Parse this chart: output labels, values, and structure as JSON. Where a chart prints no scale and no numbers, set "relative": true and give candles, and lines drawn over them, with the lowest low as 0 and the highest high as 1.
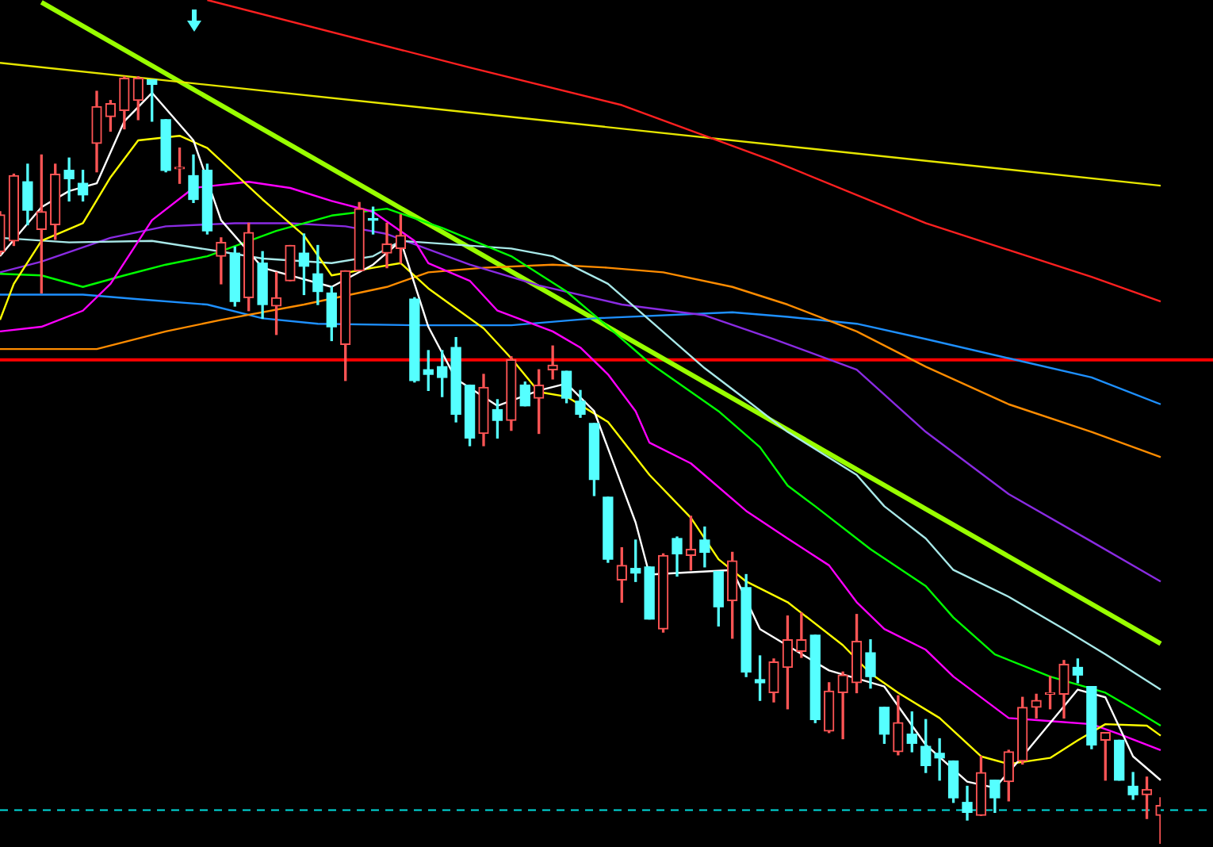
{
  "chart_data": {
    "type": "candlestick",
    "relative": true,
    "marker": "none",
    "categories": [
      null,
      null,
      null,
      null,
      null,
      null,
      null,
      null,
      null,
      null,
      null,
      null,
      null,
      null,
      null,
      null,
      null,
      null,
      null,
      null,
      null,
      null,
      null,
      null,
      null,
      null,
      null,
      null,
      null,
      null,
      null,
      null,
      null,
      null,
      null,
      null,
      null,
      null,
      null,
      null,
      null,
      null,
      null,
      null,
      null,
      null,
      null,
      null,
      null,
      null,
      null,
      null,
      null,
      null,
      null,
      null,
      null,
      null,
      null,
      null,
      null,
      null,
      null,
      null,
      null,
      null,
      null,
      null,
      null,
      null,
      null,
      null,
      null,
      null,
      null,
      null,
      null,
      null,
      null,
      null,
      null,
      null,
      null,
      null,
      null
    ],
    "ohlc": [
      [
        0.772,
        0.824,
        0.768,
        0.82
      ],
      [
        0.786,
        0.873,
        0.78,
        0.871
      ],
      [
        0.863,
        0.886,
        0.807,
        0.826
      ],
      [
        0.801,
        0.898,
        0.718,
        0.824
      ],
      [
        0.807,
        0.886,
        0.788,
        0.873
      ],
      [
        0.878,
        0.894,
        0.838,
        0.867
      ],
      [
        0.861,
        0.878,
        0.838,
        0.846
      ],
      [
        0.913,
        0.981,
        0.876,
        0.961
      ],
      [
        0.948,
        0.969,
        0.929,
        0.965
      ],
      [
        0.956,
        1,
        0.932,
        0.998
      ],
      [
        0.969,
        1,
        0.944,
        0.998
      ],
      [
        0.996,
        0.996,
        0.942,
        0.99
      ],
      [
        0.944,
        0.944,
        0.876,
        0.878
      ],
      [
        0.88,
        0.907,
        0.861,
        0.882
      ],
      [
        0.871,
        0.898,
        0.836,
        0.84
      ],
      [
        0.878,
        0.886,
        0.795,
        0.799
      ],
      [
        0.766,
        0.79,
        0.73,
        0.784
      ],
      [
        0.77,
        0.778,
        0.701,
        0.707
      ],
      [
        0.712,
        0.809,
        0.695,
        0.797
      ],
      [
        0.757,
        0.772,
        0.685,
        0.703
      ],
      [
        0.701,
        0.745,
        0.664,
        0.712
      ],
      [
        0.734,
        0.78,
        0.734,
        0.78
      ],
      [
        0.77,
        0.795,
        0.716,
        0.753
      ],
      [
        0.743,
        0.78,
        0.703,
        0.72
      ],
      [
        0.718,
        0.726,
        0.656,
        0.674
      ],
      [
        0.651,
        0.747,
        0.604,
        0.747
      ],
      [
        0.747,
        0.836,
        0.747,
        0.828
      ],
      [
        0.815,
        0.83,
        0.795,
        0.813
      ],
      [
        0.77,
        0.809,
        0.751,
        0.782
      ],
      [
        0.776,
        0.82,
        0.757,
        0.793
      ],
      [
        0.71,
        0.712,
        0.602,
        0.604
      ],
      [
        0.618,
        0.643,
        0.591,
        0.612
      ],
      [
        0.622,
        0.643,
        0.583,
        0.608
      ],
      [
        0.647,
        0.66,
        0.55,
        0.56
      ],
      [
        0.598,
        0.598,
        0.519,
        0.529
      ],
      [
        0.535,
        0.612,
        0.519,
        0.595
      ],
      [
        0.566,
        0.579,
        0.529,
        0.552
      ],
      [
        0.552,
        0.635,
        0.539,
        0.631
      ],
      [
        0.598,
        0.602,
        0.571,
        0.571
      ],
      [
        0.581,
        0.618,
        0.535,
        0.598
      ],
      [
        0.618,
        0.649,
        0.606,
        0.624
      ],
      [
        0.616,
        0.616,
        0.575,
        0.581
      ],
      [
        0.577,
        0.591,
        0.556,
        0.56
      ],
      [
        0.548,
        0.548,
        0.454,
        0.475
      ],
      [
        0.452,
        0.452,
        0.367,
        0.371
      ],
      [
        0.344,
        0.386,
        0.315,
        0.363
      ],
      [
        0.359,
        0.396,
        0.342,
        0.353
      ],
      [
        0.361,
        0.361,
        0.293,
        0.293
      ],
      [
        0.28,
        0.378,
        0.276,
        0.376
      ],
      [
        0.398,
        0.4,
        0.349,
        0.378
      ],
      [
        0.376,
        0.427,
        0.357,
        0.384
      ],
      [
        0.396,
        0.413,
        0.361,
        0.38
      ],
      [
        0.355,
        0.355,
        0.284,
        0.309
      ],
      [
        0.317,
        0.38,
        0.268,
        0.369
      ],
      [
        0.334,
        0.351,
        0.218,
        0.224
      ],
      [
        0.214,
        0.245,
        0.187,
        0.21
      ],
      [
        0.197,
        0.241,
        0.185,
        0.237
      ],
      [
        0.23,
        0.297,
        0.176,
        0.266
      ],
      [
        0.251,
        0.301,
        0.243,
        0.266
      ],
      [
        0.272,
        0.272,
        0.158,
        0.162
      ],
      [
        0.147,
        0.21,
        0.145,
        0.199
      ],
      [
        0.197,
        0.224,
        0.137,
        0.22
      ],
      [
        0.21,
        0.299,
        0.197,
        0.264
      ],
      [
        0.249,
        0.266,
        0.203,
        0.218
      ],
      [
        0.178,
        0.178,
        0.131,
        0.143
      ],
      [
        0.12,
        0.193,
        0.116,
        0.158
      ],
      [
        0.143,
        0.172,
        0.12,
        0.131
      ],
      [
        0.127,
        0.162,
        0.093,
        0.102
      ],
      [
        0.118,
        0.137,
        0.083,
        0.112
      ],
      [
        0.108,
        0.108,
        0.054,
        0.06
      ],
      [
        0.054,
        0.075,
        0.031,
        0.041
      ],
      [
        0.037,
        0.114,
        0.037,
        0.093
      ],
      [
        0.083,
        0.083,
        0.041,
        0.06
      ],
      [
        0.081,
        0.122,
        0.056,
        0.12
      ],
      [
        0.108,
        0.191,
        0.104,
        0.178
      ],
      [
        0.178,
        0.195,
        0.164,
        0.187
      ],
      [
        0.195,
        0.218,
        0.176,
        0.197
      ],
      [
        0.195,
        0.239,
        0.164,
        0.234
      ],
      [
        0.23,
        0.241,
        0.21,
        0.22
      ],
      [
        0.205,
        0.205,
        0.124,
        0.129
      ],
      [
        0.135,
        0.145,
        0.083,
        0.145
      ],
      [
        0.135,
        0.135,
        0.083,
        0.083
      ],
      [
        0.075,
        0.093,
        0.058,
        0.064
      ],
      [
        0.064,
        0.087,
        0.033,
        0.071
      ],
      [
        0.037,
        0.06,
        0,
        0.05
      ]
    ],
    "colors": [
      "#ff5555",
      "#ff5555",
      "#55ffff",
      "#ff5555",
      "#ff5555",
      "#55ffff",
      "#55ffff",
      "#ff5555",
      "#ff5555",
      "#ff5555",
      "#ff5555",
      "#55ffff",
      "#55ffff",
      "#ff5555",
      "#55ffff",
      "#55ffff",
      "#ff5555",
      "#55ffff",
      "#ff5555",
      "#55ffff",
      "#ff5555",
      "#ff5555",
      "#55ffff",
      "#55ffff",
      "#55ffff",
      "#ff5555",
      "#ff5555",
      "#55ffff",
      "#ff5555",
      "#ff5555",
      "#55ffff",
      "#55ffff",
      "#55ffff",
      "#55ffff",
      "#55ffff",
      "#ff5555",
      "#55ffff",
      "#ff5555",
      "#55ffff",
      "#ff5555",
      "#ff5555",
      "#55ffff",
      "#55ffff",
      "#55ffff",
      "#55ffff",
      "#ff5555",
      "#55ffff",
      "#55ffff",
      "#ff5555",
      "#55ffff",
      "#ff5555",
      "#55ffff",
      "#55ffff",
      "#ff5555",
      "#55ffff",
      "#55ffff",
      "#ff5555",
      "#ff5555",
      "#ff5555",
      "#55ffff",
      "#ff5555",
      "#ff5555",
      "#ff5555",
      "#55ffff",
      "#55ffff",
      "#ff5555",
      "#55ffff",
      "#55ffff",
      "#55ffff",
      "#55ffff",
      "#55ffff",
      "#ff5555",
      "#55ffff",
      "#ff5555",
      "#ff5555",
      "#ff5555",
      "#ff5555",
      "#ff5555",
      "#55ffff",
      "#55ffff",
      "#ff5555",
      "#55ffff",
      "#55ffff",
      "#ff5555",
      "#ff5555"
    ],
    "series": [
      {
        "type": "line",
        "color": "#ffffff",
        "values": [
          0.766,
          null,
          null,
          0.83,
          null,
          0.851,
          null,
          0.861,
          null,
          0.942,
          null,
          0.979,
          null,
          null,
          0.917,
          null,
          0.813,
          null,
          null,
          0.751,
          null,
          null,
          null,
          null,
          0.726,
          null,
          null,
          0.755,
          null,
          0.786,
          null,
          0.674,
          null,
          0.606,
          null,
          null,
          0.571,
          null,
          null,
          0.591,
          null,
          0.6,
          null,
          0.564,
          null,
          null,
          0.419,
          0.351,
          null,
          0.353,
          null,
          null,
          null,
          0.357,
          null,
          0.28,
          null,
          null,
          null,
          null,
          0.226,
          null,
          null,
          null,
          0.205,
          null,
          null,
          0.129,
          null,
          null,
          0.081,
          null,
          0.073,
          null,
          0.114,
          null,
          null,
          null,
          0.201,
          null,
          0.191,
          null,
          0.114,
          null,
          0.083
        ]
      },
      {
        "type": "line",
        "color": "#ffff00",
        "values": [
          0.683,
          0.73,
          null,
          0.786,
          null,
          null,
          0.809,
          null,
          0.869,
          null,
          0.917,
          null,
          null,
          0.923,
          null,
          0.907,
          null,
          null,
          null,
          0.84,
          null,
          null,
          0.793,
          null,
          0.741,
          null,
          null,
          0.751,
          null,
          0.757,
          null,
          0.724,
          null,
          null,
          null,
          0.672,
          null,
          0.633,
          null,
          0.589,
          null,
          0.583,
          null,
          null,
          0.55,
          null,
          null,
          0.481,
          null,
          null,
          0.425,
          null,
          0.371,
          null,
          0.342,
          null,
          null,
          0.315,
          null,
          null,
          null,
          0.259,
          null,
          0.222,
          null,
          0.197,
          null,
          null,
          0.164,
          null,
          null,
          0.114,
          null,
          0.104,
          null,
          null,
          0.112,
          null,
          0.135,
          null,
          0.156,
          null,
          null,
          0.154,
          0.141
        ]
      },
      {
        "type": "line",
        "color": "#ff00ff",
        "values": [
          0.668,
          null,
          null,
          0.674,
          null,
          null,
          0.695,
          null,
          0.73,
          null,
          null,
          0.813,
          null,
          null,
          0.855,
          null,
          null,
          null,
          0.863,
          null,
          null,
          0.855,
          null,
          null,
          0.838,
          null,
          null,
          0.824,
          null,
          null,
          0.786,
          0.757,
          null,
          null,
          0.734,
          null,
          0.695,
          null,
          null,
          null,
          0.668,
          null,
          0.647,
          null,
          0.612,
          null,
          0.564,
          0.523,
          null,
          null,
          0.496,
          null,
          null,
          null,
          0.434,
          null,
          null,
          0.398,
          null,
          null,
          0.363,
          null,
          0.315,
          null,
          0.28,
          null,
          null,
          0.253,
          null,
          0.218,
          null,
          null,
          null,
          0.164,
          null,
          null,
          0.16,
          null,
          null,
          0.156,
          null,
          0.143,
          null,
          null,
          0.122
        ]
      },
      {
        "type": "line",
        "color": "#00ff00",
        "values": [
          0.743,
          null,
          null,
          0.741,
          null,
          null,
          0.726,
          null,
          null,
          0.741,
          null,
          null,
          0.755,
          null,
          null,
          0.766,
          null,
          null,
          null,
          null,
          0.799,
          null,
          null,
          null,
          0.819,
          null,
          null,
          null,
          0.828,
          null,
          null,
          null,
          0.803,
          null,
          null,
          null,
          null,
          0.766,
          null,
          null,
          null,
          0.72,
          null,
          null,
          0.674,
          null,
          null,
          0.627,
          null,
          null,
          null,
          null,
          0.564,
          null,
          null,
          0.517,
          null,
          0.467,
          null,
          0.44,
          null,
          null,
          null,
          0.384,
          null,
          null,
          null,
          0.336,
          null,
          0.295,
          null,
          null,
          0.247,
          null,
          null,
          null,
          0.218,
          null,
          null,
          null,
          0.197,
          null,
          0.176,
          null,
          0.154
        ]
      },
      {
        "type": "line",
        "color": "#a8e8e8",
        "values": [
          0.79,
          null,
          null,
          null,
          null,
          0.784,
          null,
          null,
          null,
          null,
          null,
          0.786,
          null,
          null,
          null,
          null,
          0.772,
          null,
          null,
          0.763,
          null,
          null,
          null,
          null,
          0.757,
          null,
          null,
          0.766,
          null,
          0.786,
          null,
          null,
          null,
          null,
          null,
          null,
          null,
          0.776,
          null,
          null,
          0.766,
          null,
          null,
          null,
          0.73,
          null,
          null,
          0.683,
          null,
          null,
          null,
          0.62,
          null,
          null,
          0.579,
          null,
          null,
          0.537,
          null,
          null,
          null,
          null,
          0.481,
          null,
          0.44,
          null,
          null,
          0.398,
          null,
          0.357,
          null,
          null,
          null,
          0.322,
          null,
          null,
          null,
          0.28,
          null,
          null,
          0.247,
          null,
          null,
          null,
          0.201
        ]
      },
      {
        "type": "line",
        "color": "#8a2be2",
        "values": [
          0.745,
          null,
          null,
          0.759,
          null,
          null,
          null,
          null,
          0.79,
          null,
          null,
          null,
          0.805,
          null,
          null,
          null,
          null,
          0.809,
          null,
          null,
          null,
          0.809,
          null,
          null,
          null,
          0.805,
          null,
          null,
          0.795,
          null,
          null,
          null,
          null,
          null,
          0.755,
          null,
          null,
          null,
          null,
          0.728,
          null,
          null,
          null,
          null,
          null,
          0.703,
          null,
          null,
          null,
          null,
          null,
          0.689,
          null,
          null,
          null,
          null,
          0.658,
          null,
          null,
          null,
          null,
          null,
          0.618,
          null,
          null,
          null,
          null,
          0.537,
          null,
          null,
          null,
          null,
          null,
          0.456,
          null,
          null,
          null,
          null,
          null,
          0.394,
          null,
          null,
          null,
          null,
          0.342
        ]
      },
      {
        "type": "line",
        "color": "#ff8c00",
        "values": [
          0.645,
          null,
          null,
          null,
          null,
          null,
          null,
          0.645,
          null,
          null,
          null,
          null,
          0.668,
          null,
          null,
          null,
          0.683,
          null,
          null,
          null,
          null,
          null,
          0.703,
          null,
          null,
          null,
          null,
          null,
          0.726,
          null,
          null,
          0.745,
          null,
          null,
          null,
          0.751,
          null,
          null,
          null,
          null,
          0.755,
          null,
          null,
          null,
          0.751,
          null,
          null,
          null,
          0.745,
          null,
          null,
          null,
          null,
          0.726,
          null,
          null,
          null,
          0.703,
          null,
          null,
          null,
          null,
          0.668,
          null,
          null,
          null,
          null,
          0.622,
          null,
          null,
          null,
          null,
          null,
          0.573,
          null,
          null,
          null,
          null,
          null,
          0.537,
          null,
          null,
          null,
          null,
          0.504
        ]
      },
      {
        "type": "line",
        "color": "#1e90ff",
        "values": [
          0.716,
          null,
          null,
          null,
          null,
          null,
          0.716,
          null,
          null,
          null,
          0.71,
          null,
          null,
          null,
          null,
          0.703,
          null,
          null,
          null,
          0.685,
          null,
          null,
          null,
          0.678,
          null,
          null,
          null,
          null,
          null,
          null,
          0.676,
          null,
          null,
          null,
          null,
          null,
          null,
          0.676,
          null,
          null,
          null,
          null,
          null,
          0.685,
          null,
          null,
          null,
          null,
          null,
          null,
          null,
          null,
          null,
          0.693,
          null,
          null,
          null,
          0.687,
          null,
          null,
          null,
          null,
          0.678,
          null,
          null,
          null,
          null,
          0.658,
          null,
          null,
          null,
          null,
          null,
          0.633,
          null,
          null,
          null,
          null,
          null,
          0.608,
          null,
          null,
          null,
          null,
          0.573
        ]
      },
      {
        "type": "line",
        "color": "#ff2020",
        "values": [
          null,
          null,
          null,
          null,
          null,
          null,
          null,
          null,
          null,
          null,
          null,
          null,
          null,
          null,
          null,
          1.1,
          null,
          null,
          null,
          null,
          null,
          null,
          null,
          null,
          null,
          null,
          null,
          null,
          null,
          null,
          null,
          null,
          null,
          null,
          1.012,
          null,
          null,
          null,
          null,
          null,
          null,
          null,
          null,
          null,
          null,
          0.963,
          null,
          null,
          null,
          null,
          null,
          null,
          null,
          null,
          null,
          null,
          0.89,
          null,
          null,
          null,
          null,
          null,
          null,
          null,
          null,
          null,
          null,
          0.809,
          null,
          null,
          null,
          null,
          null,
          null,
          null,
          null,
          null,
          null,
          null,
          0.739,
          null,
          null,
          null,
          null,
          0.707
        ]
      },
      {
        "type": "line",
        "color": "#e6e600",
        "values": [
          1.018,
          null,
          null,
          null,
          null,
          null,
          null,
          null,
          null,
          null,
          null,
          null,
          null,
          null,
          null,
          null,
          null,
          null,
          null,
          null,
          null,
          null,
          null,
          null,
          null,
          null,
          null,
          null,
          null,
          null,
          null,
          null,
          null,
          null,
          null,
          null,
          null,
          null,
          null,
          null,
          null,
          null,
          null,
          null,
          null,
          null,
          null,
          null,
          null,
          null,
          null,
          null,
          null,
          null,
          null,
          null,
          null,
          null,
          null,
          null,
          null,
          null,
          null,
          null,
          null,
          null,
          null,
          null,
          null,
          null,
          null,
          null,
          null,
          null,
          null,
          null,
          null,
          null,
          null,
          null,
          null,
          null,
          null,
          null,
          0.858
        ]
      },
      {
        "type": "line",
        "color": "#99ff00",
        "values": [
          null,
          null,
          null,
          1.097,
          null,
          null,
          null,
          null,
          null,
          null,
          null,
          null,
          null,
          null,
          null,
          null,
          null,
          null,
          null,
          null,
          null,
          null,
          null,
          null,
          null,
          null,
          null,
          null,
          null,
          null,
          null,
          null,
          null,
          null,
          null,
          null,
          null,
          null,
          null,
          null,
          null,
          null,
          null,
          null,
          null,
          null,
          null,
          null,
          null,
          null,
          null,
          null,
          null,
          null,
          null,
          null,
          null,
          null,
          null,
          null,
          null,
          null,
          null,
          null,
          null,
          null,
          null,
          null,
          null,
          null,
          null,
          null,
          null,
          null,
          null,
          null,
          null,
          null,
          null,
          null,
          null,
          null,
          null,
          null,
          0.261
        ]
      }
    ],
    "ref_lines": [
      {
        "axis": "y",
        "value": 0.631,
        "color": "#ff0000"
      },
      {
        "axis": "y",
        "value": 0.044,
        "color": "#00dddd",
        "line_style": "dashed"
      }
    ]
  }
}
